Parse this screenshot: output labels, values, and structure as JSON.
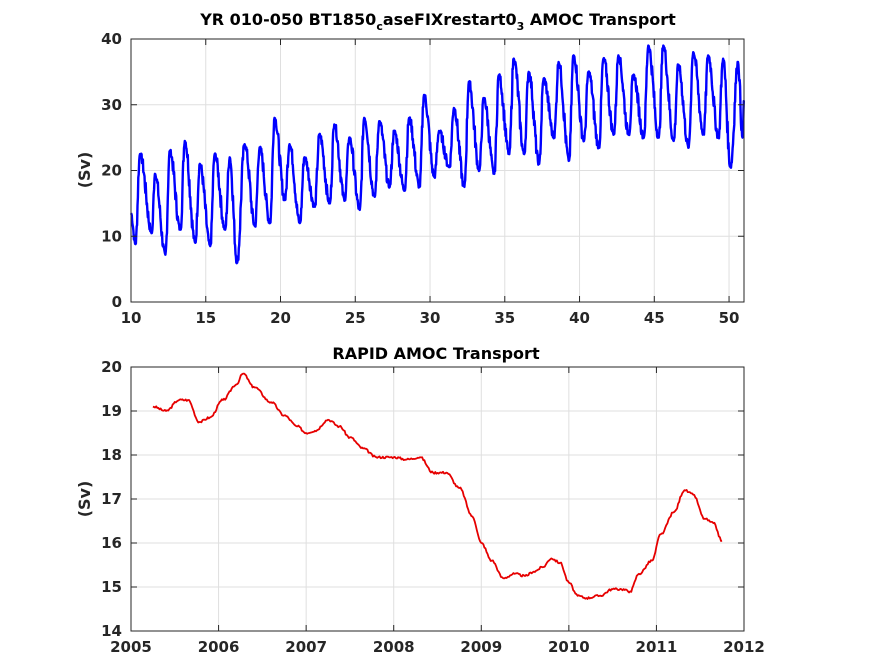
{
  "chart_data": [
    {
      "type": "line",
      "title": "YR 010-050 BT1850",
      "title_sub": "c",
      "title_mid": "aseFIXrestart0",
      "title_sub2": "3",
      "title_end": " AMOC Transport",
      "xlabel": "",
      "ylabel": "(Sv)",
      "xlim": [
        10,
        51
      ],
      "ylim": [
        0,
        40
      ],
      "xticks": [
        "10",
        "15",
        "20",
        "25",
        "30",
        "35",
        "40",
        "45",
        "50"
      ],
      "yticks": [
        "0",
        "10",
        "20",
        "30",
        "40"
      ],
      "grid": true,
      "color": "#0000ff",
      "trend": [
        [
          10,
          13.5
        ],
        [
          15,
          15.5
        ],
        [
          20,
          17.5
        ],
        [
          25,
          19.5
        ],
        [
          30,
          22.5
        ],
        [
          35,
          26.0
        ],
        [
          40,
          28.5
        ],
        [
          45,
          30.0
        ],
        [
          51,
          30.5
        ]
      ],
      "minima": [
        [
          10.3,
          8.8
        ],
        [
          11.4,
          10.5
        ],
        [
          12.3,
          7.2
        ],
        [
          13.3,
          11.0
        ],
        [
          14.3,
          9.0
        ],
        [
          15.3,
          8.5
        ],
        [
          16.3,
          11.0
        ],
        [
          17.1,
          6.0
        ],
        [
          18.3,
          11.5
        ],
        [
          19.3,
          12.0
        ],
        [
          20.3,
          15.5
        ],
        [
          21.3,
          12.0
        ],
        [
          22.3,
          14.5
        ],
        [
          23.3,
          15.0
        ],
        [
          24.3,
          15.5
        ],
        [
          25.3,
          14.0
        ],
        [
          26.3,
          16.0
        ],
        [
          27.3,
          17.5
        ],
        [
          28.3,
          17.0
        ],
        [
          29.3,
          17.5
        ],
        [
          30.3,
          19.0
        ],
        [
          31.3,
          20.5
        ],
        [
          32.3,
          17.5
        ],
        [
          33.3,
          20.0
        ],
        [
          34.3,
          19.5
        ],
        [
          35.3,
          22.5
        ],
        [
          36.3,
          22.5
        ],
        [
          37.3,
          21.0
        ],
        [
          38.3,
          25.0
        ],
        [
          39.3,
          21.5
        ],
        [
          40.3,
          24.5
        ],
        [
          41.3,
          23.5
        ],
        [
          42.3,
          25.5
        ],
        [
          43.3,
          25.5
        ],
        [
          44.3,
          25.0
        ],
        [
          45.3,
          25.0
        ],
        [
          46.3,
          24.5
        ],
        [
          47.3,
          23.5
        ],
        [
          48.3,
          25.5
        ],
        [
          49.3,
          25.0
        ],
        [
          50.1,
          20.5
        ],
        [
          50.9,
          25.0
        ]
      ],
      "maxima": [
        [
          10.6,
          22.5
        ],
        [
          11.6,
          19.5
        ],
        [
          12.6,
          23.0
        ],
        [
          13.6,
          24.5
        ],
        [
          14.6,
          21.0
        ],
        [
          15.6,
          22.5
        ],
        [
          16.6,
          22.0
        ],
        [
          17.6,
          24.0
        ],
        [
          18.6,
          23.5
        ],
        [
          19.6,
          28.0
        ],
        [
          20.6,
          24.0
        ],
        [
          21.6,
          22.0
        ],
        [
          22.6,
          25.5
        ],
        [
          23.6,
          27.0
        ],
        [
          24.6,
          25.0
        ],
        [
          25.6,
          28.0
        ],
        [
          26.6,
          27.5
        ],
        [
          27.6,
          26.0
        ],
        [
          28.6,
          28.0
        ],
        [
          29.6,
          31.5
        ],
        [
          30.6,
          26.0
        ],
        [
          31.6,
          29.5
        ],
        [
          32.6,
          33.5
        ],
        [
          33.6,
          31.0
        ],
        [
          34.6,
          34.5
        ],
        [
          35.6,
          37.0
        ],
        [
          36.6,
          35.0
        ],
        [
          37.6,
          34.0
        ],
        [
          38.6,
          36.5
        ],
        [
          39.6,
          37.5
        ],
        [
          40.6,
          35.0
        ],
        [
          41.6,
          37.0
        ],
        [
          42.6,
          37.5
        ],
        [
          43.6,
          34.5
        ],
        [
          44.6,
          39.0
        ],
        [
          45.6,
          39.0
        ],
        [
          46.6,
          36.0
        ],
        [
          47.6,
          38.0
        ],
        [
          48.6,
          37.5
        ],
        [
          49.6,
          37.0
        ],
        [
          50.6,
          36.5
        ]
      ]
    },
    {
      "type": "line",
      "title": "RAPID AMOC Transport",
      "xlabel": "",
      "ylabel": "(Sv)",
      "xlim": [
        2005,
        2012
      ],
      "ylim": [
        14,
        20
      ],
      "xticks": [
        "2005",
        "2006",
        "2007",
        "2008",
        "2009",
        "2010",
        "2011",
        "2012"
      ],
      "yticks": [
        "14",
        "15",
        "16",
        "17",
        "18",
        "19",
        "20"
      ],
      "grid": true,
      "color": "#e60000",
      "points": [
        [
          2005.25,
          19.1
        ],
        [
          2005.4,
          19.0
        ],
        [
          2005.55,
          19.25
        ],
        [
          2005.65,
          19.25
        ],
        [
          2005.78,
          18.75
        ],
        [
          2005.9,
          18.85
        ],
        [
          2006.05,
          19.25
        ],
        [
          2006.2,
          19.6
        ],
        [
          2006.28,
          19.85
        ],
        [
          2006.4,
          19.55
        ],
        [
          2006.6,
          19.2
        ],
        [
          2006.75,
          18.9
        ],
        [
          2006.9,
          18.65
        ],
        [
          2007.0,
          18.5
        ],
        [
          2007.1,
          18.55
        ],
        [
          2007.25,
          18.8
        ],
        [
          2007.38,
          18.65
        ],
        [
          2007.5,
          18.4
        ],
        [
          2007.65,
          18.15
        ],
        [
          2007.8,
          17.95
        ],
        [
          2008.0,
          17.95
        ],
        [
          2008.15,
          17.9
        ],
        [
          2008.3,
          17.95
        ],
        [
          2008.45,
          17.6
        ],
        [
          2008.6,
          17.6
        ],
        [
          2008.75,
          17.25
        ],
        [
          2008.9,
          16.6
        ],
        [
          2009.0,
          16.0
        ],
        [
          2009.12,
          15.6
        ],
        [
          2009.25,
          15.2
        ],
        [
          2009.38,
          15.3
        ],
        [
          2009.5,
          15.25
        ],
        [
          2009.6,
          15.35
        ],
        [
          2009.7,
          15.45
        ],
        [
          2009.8,
          15.65
        ],
        [
          2009.9,
          15.55
        ],
        [
          2010.0,
          15.1
        ],
        [
          2010.1,
          14.8
        ],
        [
          2010.2,
          14.75
        ],
        [
          2010.35,
          14.8
        ],
        [
          2010.5,
          14.95
        ],
        [
          2010.6,
          14.95
        ],
        [
          2010.7,
          14.9
        ],
        [
          2010.8,
          15.3
        ],
        [
          2010.95,
          15.6
        ],
        [
          2011.05,
          16.2
        ],
        [
          2011.2,
          16.7
        ],
        [
          2011.32,
          17.2
        ],
        [
          2011.42,
          17.1
        ],
        [
          2011.55,
          16.55
        ],
        [
          2011.65,
          16.45
        ],
        [
          2011.75,
          16.05
        ]
      ]
    }
  ]
}
